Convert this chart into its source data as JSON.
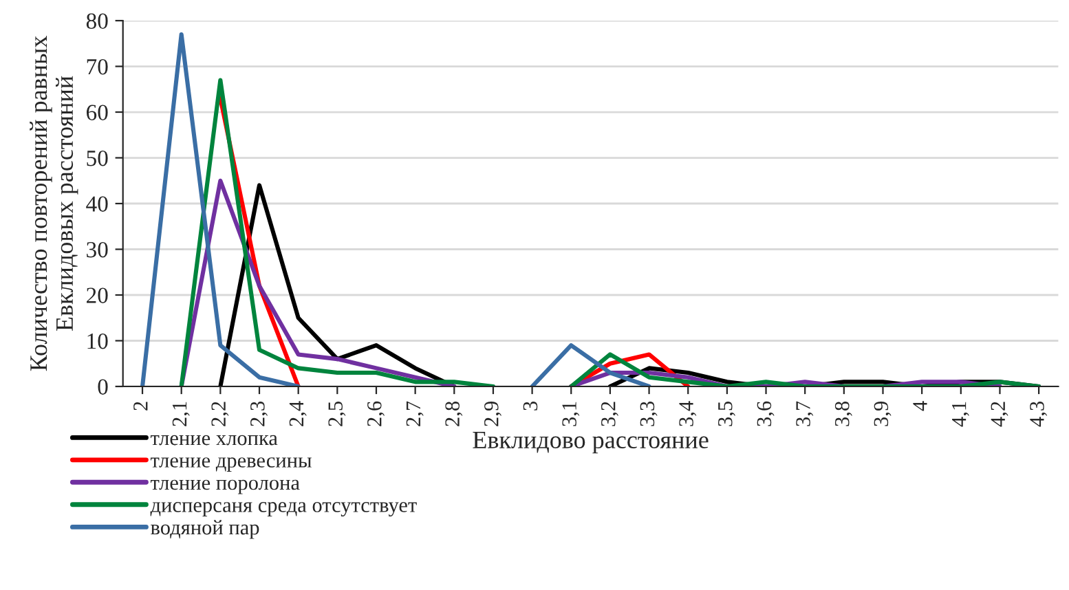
{
  "chart_data": {
    "type": "line",
    "xlabel": "Евклидово расстояние",
    "ylabel": "Количество повторений равных\nЕвклидовых расстояний",
    "categories": [
      "2",
      "2,1",
      "2,2",
      "2,3",
      "2,4",
      "2,5",
      "2,6",
      "2,7",
      "2,8",
      "2,9",
      "3",
      "3,1",
      "3,2",
      "3,3",
      "3,4",
      "3,5",
      "3,6",
      "3,7",
      "3,8",
      "3,9",
      "4",
      "4,1",
      "4,2",
      "4,3"
    ],
    "series": [
      {
        "name": "тление хлопка",
        "color": "#000000",
        "values": [
          null,
          null,
          0,
          44,
          15,
          6,
          9,
          4,
          0,
          null,
          null,
          null,
          0,
          4,
          3,
          1,
          0,
          0,
          1,
          1,
          0,
          1,
          1,
          0
        ]
      },
      {
        "name": "тление древесины",
        "color": "#ff0000",
        "values": [
          null,
          null,
          63,
          22,
          0,
          null,
          null,
          null,
          null,
          null,
          null,
          0,
          5,
          7,
          0,
          null,
          null,
          null,
          null,
          null,
          null,
          null,
          null,
          null
        ]
      },
      {
        "name": "тление поролона",
        "color": "#7030a0",
        "values": [
          null,
          0,
          45,
          22,
          7,
          6,
          4,
          2,
          0,
          null,
          null,
          0,
          3,
          3,
          2,
          0,
          0,
          1,
          0,
          0,
          1,
          1,
          0,
          null
        ]
      },
      {
        "name": "дисперсаня среда отсутствует",
        "color": "#00843d",
        "values": [
          null,
          0,
          67,
          8,
          4,
          3,
          3,
          1,
          1,
          0,
          null,
          0,
          7,
          2,
          1,
          0,
          1,
          0,
          0,
          0,
          0,
          0,
          1,
          0
        ]
      },
      {
        "name": "водяной пар",
        "color": "#3a6ea5",
        "values": [
          0,
          77,
          9,
          2,
          0,
          null,
          null,
          null,
          null,
          null,
          0,
          9,
          3,
          0,
          null,
          null,
          null,
          null,
          null,
          null,
          null,
          null,
          null,
          null
        ]
      }
    ],
    "ylim": [
      0,
      80
    ],
    "yticks": [
      0,
      10,
      20,
      30,
      40,
      50,
      60,
      70,
      80
    ],
    "grid": "y",
    "legend": "bottom left",
    "line_style": "solid",
    "marker": "none"
  }
}
